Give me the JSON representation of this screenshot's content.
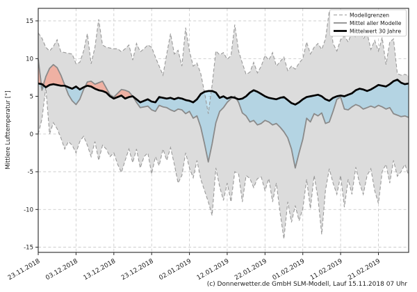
{
  "figure": {
    "ylabel": "Mittlere Lufttemperatur [°]",
    "caption": "(c) Donnerwetter.de GmbH SLM-Modell, Lauf 15.11.2018 07 Uhr"
  },
  "chart_data": {
    "type": "line",
    "title": "",
    "xlabel": "",
    "ylabel": "Mittlere Lufttemperatur [°]",
    "ylim": [
      -15.7,
      16.7
    ],
    "y_ticks": [
      15,
      10,
      5,
      0,
      -5,
      -10,
      -15
    ],
    "grid": true,
    "x_count": 99,
    "x_start_date": "23.11.2018",
    "x_tick_indices": [
      0,
      10,
      20,
      30,
      40,
      50,
      60,
      70,
      80,
      90
    ],
    "x_tick_labels": [
      "23.11.2018",
      "03.12.2018",
      "13.12.2018",
      "23.12.2018",
      "02.01.2019",
      "12.01.2019",
      "22.01.2019",
      "01.02.2019",
      "11.02.2019",
      "21.02.2019"
    ],
    "legend": {
      "position": "top-right",
      "items": [
        {
          "label": "Modellgrenzen",
          "style": "dashed"
        },
        {
          "label": "Mittel aller Modelle",
          "style": "solid"
        },
        {
          "label": "Mittelwert 30 Jahre",
          "style": "thick"
        }
      ]
    },
    "series": [
      {
        "name": "Modellgrenzen obere Grenze",
        "role": "upper",
        "values": [
          13.4,
          12.7,
          11.5,
          11.0,
          11.6,
          12.5,
          10.9,
          10.8,
          10.7,
          10.6,
          9.3,
          9.5,
          11.0,
          13.3,
          9.3,
          11.5,
          15.2,
          11.8,
          11.5,
          11.4,
          11.3,
          11.3,
          10.9,
          11.3,
          11.8,
          9.8,
          12.0,
          10.9,
          11.3,
          11.8,
          11.5,
          10.2,
          9.0,
          7.8,
          10.6,
          13.3,
          10.6,
          11.1,
          9.0,
          14.1,
          11.0,
          9.0,
          9.4,
          8.0,
          5.5,
          2.7,
          6.5,
          11.0,
          10.5,
          10.8,
          9.9,
          10.4,
          14.5,
          11.0,
          9.4,
          7.9,
          8.2,
          9.5,
          8.1,
          9.0,
          10.4,
          9.8,
          10.8,
          9.0,
          9.6,
          10.2,
          8.4,
          9.0,
          8.6,
          9.4,
          10.0,
          12.2,
          10.6,
          11.5,
          12.0,
          11.2,
          12.6,
          16.3,
          12.0,
          11.0,
          12.5,
          13.0,
          12.2,
          13.5,
          12.8,
          13.8,
          12.6,
          13.4,
          11.2,
          12.4,
          11.0,
          12.8,
          9.2,
          12.2,
          12.6,
          8.0,
          7.8,
          7.9,
          7.7
        ]
      },
      {
        "name": "Modellgrenzen untere Grenze",
        "role": "lower",
        "values": [
          0.0,
          2.0,
          6.2,
          0.0,
          1.5,
          0.7,
          -0.5,
          -2.0,
          -1.0,
          -1.5,
          -2.5,
          -1.0,
          -0.3,
          -1.5,
          -3.0,
          -1.0,
          -3.5,
          -1.5,
          -2.0,
          -3.0,
          -2.5,
          -4.0,
          -5.1,
          -3.5,
          -2.0,
          -3.8,
          -2.0,
          -4.5,
          -3.0,
          -2.5,
          -5.3,
          -3.0,
          -4.2,
          -2.0,
          -3.5,
          -1.8,
          -4.0,
          -6.5,
          -5.5,
          -2.5,
          -4.5,
          -5.8,
          -3.5,
          -6.0,
          -7.5,
          -9.0,
          -10.8,
          -4.5,
          -7.0,
          -8.8,
          -6.5,
          -9.0,
          -5.0,
          -5.3,
          -9.0,
          -5.5,
          -5.9,
          -7.1,
          -5.9,
          -5.7,
          -7.5,
          -5.9,
          -9.0,
          -6.5,
          -10.5,
          -13.9,
          -9.0,
          -11.7,
          -9.5,
          -11.5,
          -9.9,
          -6.0,
          -9.9,
          -5.5,
          -8.5,
          -13.3,
          -7.5,
          -4.6,
          -6.5,
          -8.0,
          -5.5,
          -9.7,
          -6.0,
          -8.0,
          -4.4,
          -6.5,
          -8.0,
          -5.5,
          -4.6,
          -7.5,
          -9.2,
          -5.0,
          -4.0,
          -6.5,
          -3.5,
          -5.6,
          -5.0,
          -4.0,
          -5.5
        ]
      },
      {
        "name": "Mittel aller Modelle",
        "role": "mean",
        "values": [
          9.9,
          5.8,
          7.6,
          8.7,
          9.2,
          8.8,
          7.8,
          6.5,
          5.2,
          4.4,
          3.9,
          4.6,
          5.9,
          6.9,
          7.0,
          6.6,
          6.8,
          7.0,
          6.1,
          5.2,
          4.9,
          5.4,
          5.9,
          5.8,
          5.6,
          5.0,
          4.2,
          3.5,
          3.6,
          3.7,
          3.2,
          3.0,
          3.8,
          3.6,
          3.5,
          3.2,
          3.0,
          3.3,
          3.2,
          2.7,
          3.0,
          2.1,
          2.4,
          0.9,
          -1.3,
          -3.7,
          -1.3,
          1.5,
          3.0,
          3.5,
          4.2,
          4.7,
          5.0,
          4.2,
          2.8,
          2.4,
          1.6,
          1.8,
          1.2,
          1.4,
          1.8,
          1.6,
          1.2,
          1.4,
          0.9,
          0.3,
          -0.5,
          -2.0,
          -4.5,
          -2.5,
          -0.7,
          2.1,
          1.6,
          2.7,
          2.4,
          2.8,
          1.4,
          1.6,
          3.0,
          4.6,
          4.9,
          3.3,
          3.2,
          3.6,
          3.9,
          3.7,
          3.3,
          3.5,
          3.7,
          3.5,
          3.8,
          3.6,
          3.3,
          3.5,
          2.7,
          2.5,
          2.3,
          2.4,
          2.2
        ]
      },
      {
        "name": "Mittelwert 30 Jahre",
        "role": "clim",
        "values": [
          6.7,
          6.6,
          6.2,
          6.5,
          6.6,
          6.5,
          6.4,
          6.4,
          6.2,
          6.0,
          6.3,
          5.9,
          6.2,
          6.4,
          6.3,
          6.0,
          5.8,
          5.7,
          5.5,
          5.0,
          4.7,
          4.9,
          5.1,
          4.7,
          4.9,
          5.0,
          4.6,
          4.2,
          4.4,
          4.6,
          4.3,
          4.2,
          4.9,
          4.8,
          4.7,
          4.8,
          4.6,
          4.8,
          4.7,
          4.5,
          4.4,
          4.2,
          4.6,
          5.3,
          5.6,
          5.7,
          5.7,
          5.5,
          4.8,
          5.0,
          4.7,
          4.9,
          4.8,
          4.6,
          4.7,
          5.0,
          5.5,
          5.8,
          5.6,
          5.3,
          5.0,
          4.8,
          4.7,
          4.6,
          4.8,
          4.9,
          4.5,
          4.1,
          3.9,
          4.2,
          4.6,
          4.9,
          5.0,
          5.1,
          5.2,
          5.0,
          4.6,
          4.4,
          4.8,
          5.0,
          5.1,
          5.0,
          5.2,
          5.4,
          5.8,
          6.0,
          5.9,
          5.7,
          5.9,
          6.2,
          6.5,
          6.4,
          6.3,
          6.6,
          7.0,
          7.2,
          6.8,
          6.6,
          6.7
        ]
      }
    ],
    "colors": {
      "envelope_fill": "#dcdcdc",
      "bound_line": "#999999",
      "mean_line": "#8a8a8a",
      "clim_line": "#000000",
      "above_fill": "rgba(255,142,116,0.55)",
      "below_fill": "rgba(148,206,234,0.55)",
      "grid": "#cccccc",
      "axis": "#262626",
      "text": "#1a1a1a"
    }
  }
}
